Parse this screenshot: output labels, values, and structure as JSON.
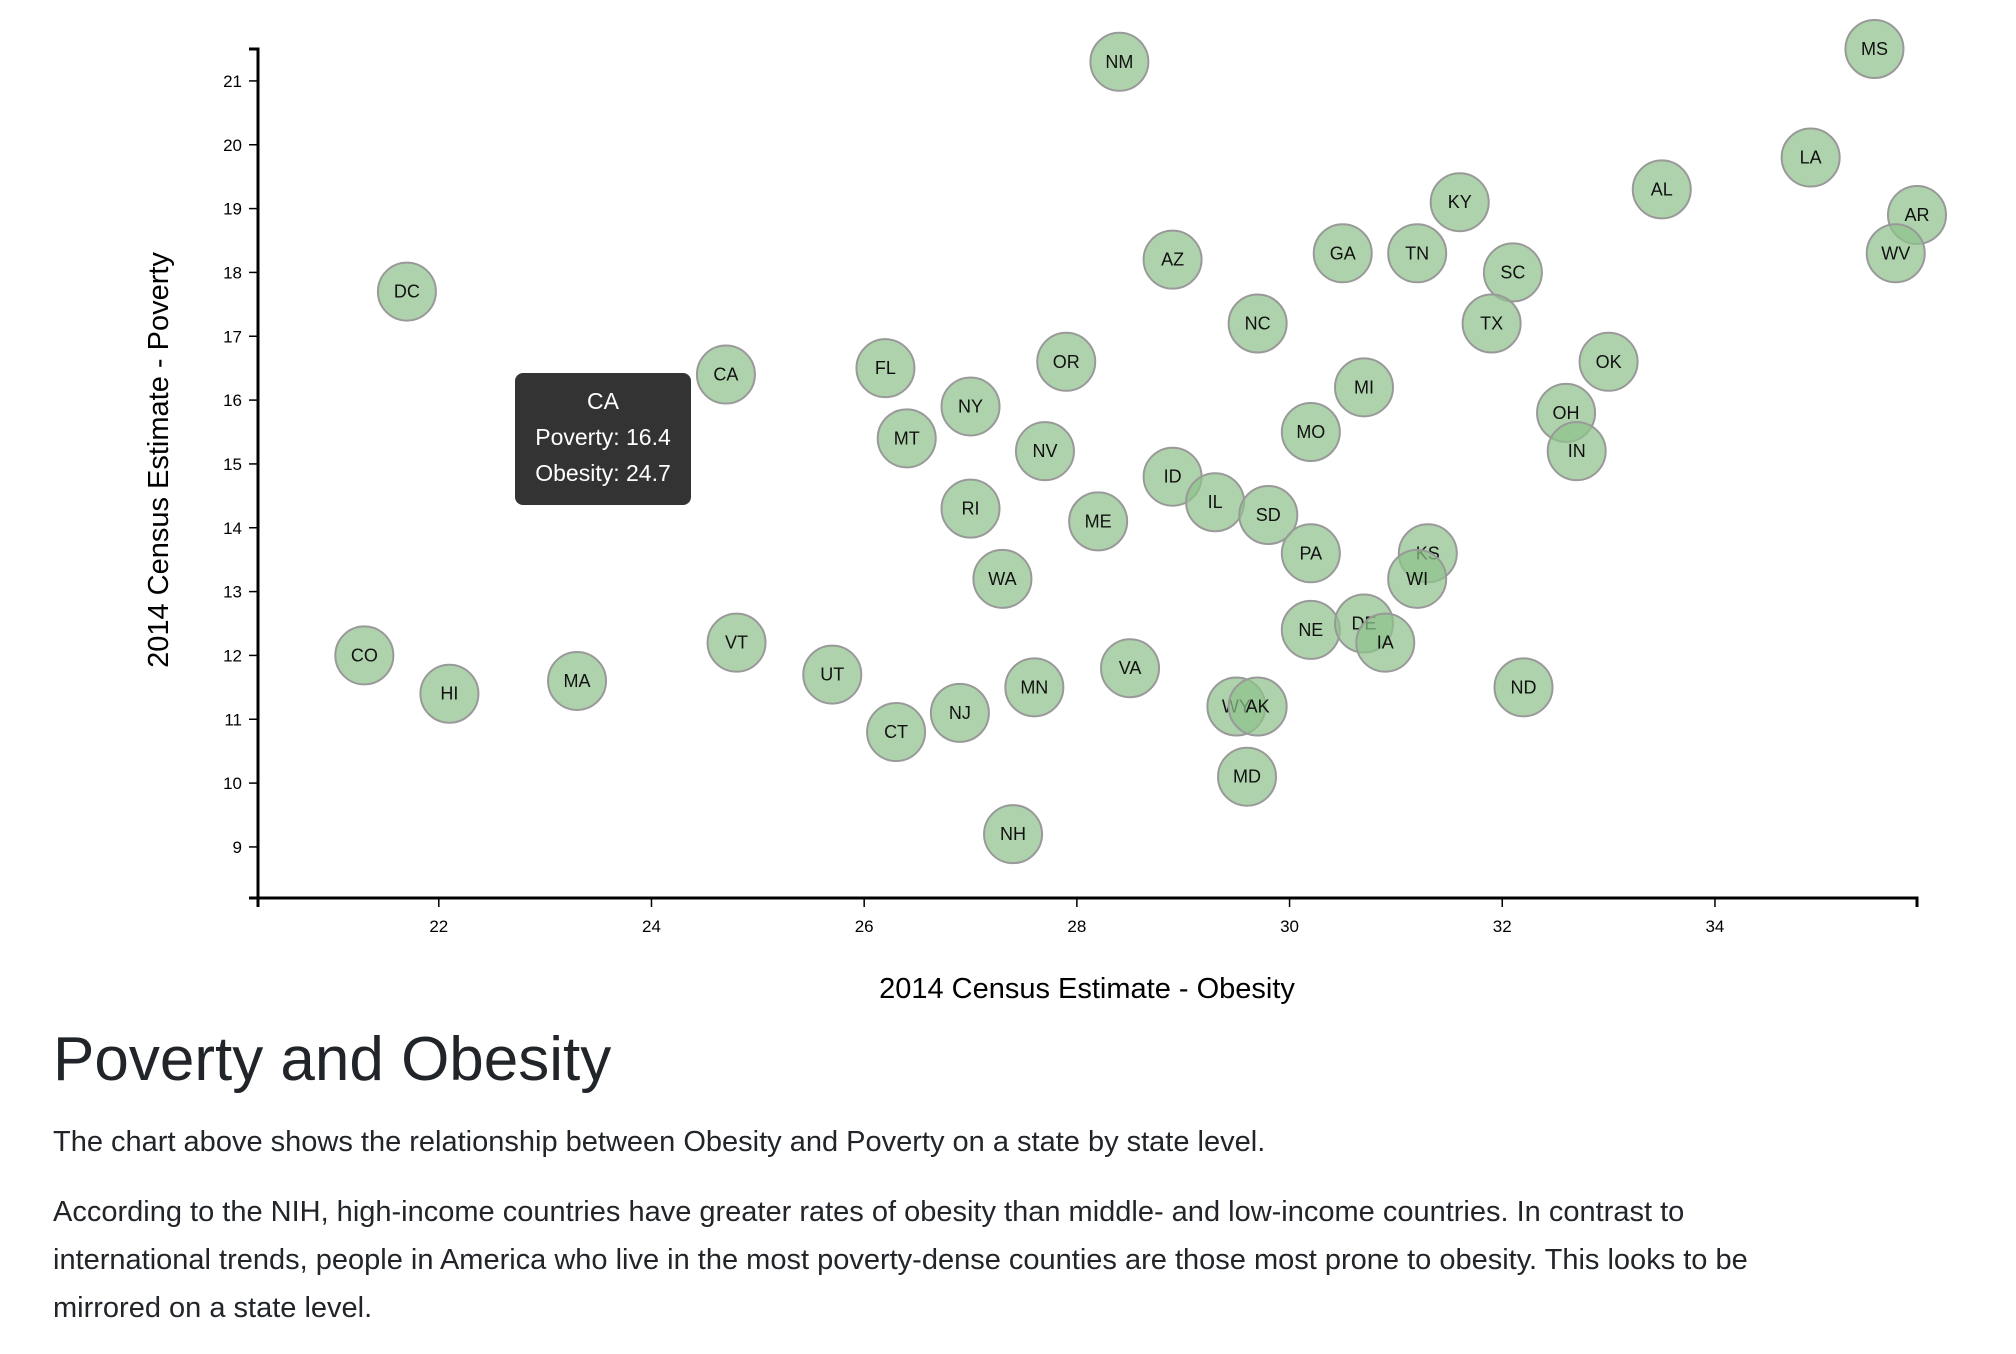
{
  "chart_data": {
    "type": "scatter",
    "xlabel": "2014 Census Estimate - Obesity",
    "ylabel": "2014 Census Estimate - Poverty",
    "xlim": [
      20.3,
      35.9
    ],
    "ylim": [
      8.2,
      21.5
    ],
    "xticks": [
      22,
      24,
      26,
      28,
      30,
      32,
      34
    ],
    "yticks": [
      9,
      10,
      11,
      12,
      13,
      14,
      15,
      16,
      17,
      18,
      19,
      20,
      21
    ],
    "grid": false,
    "marker_color": "#8fc28c",
    "points": [
      {
        "label": "NM",
        "x": 28.4,
        "y": 21.3
      },
      {
        "label": "MS",
        "x": 35.5,
        "y": 21.5
      },
      {
        "label": "LA",
        "x": 34.9,
        "y": 19.8
      },
      {
        "label": "AR",
        "x": 35.9,
        "y": 18.9
      },
      {
        "label": "WV",
        "x": 35.7,
        "y": 18.3
      },
      {
        "label": "AL",
        "x": 33.5,
        "y": 19.3
      },
      {
        "label": "KY",
        "x": 31.6,
        "y": 19.1
      },
      {
        "label": "TN",
        "x": 31.2,
        "y": 18.3
      },
      {
        "label": "GA",
        "x": 30.5,
        "y": 18.3
      },
      {
        "label": "SC",
        "x": 32.1,
        "y": 18.0
      },
      {
        "label": "AZ",
        "x": 28.9,
        "y": 18.2
      },
      {
        "label": "NC",
        "x": 29.7,
        "y": 17.2
      },
      {
        "label": "TX",
        "x": 31.9,
        "y": 17.2
      },
      {
        "label": "OK",
        "x": 33.0,
        "y": 16.6
      },
      {
        "label": "MI",
        "x": 30.7,
        "y": 16.2
      },
      {
        "label": "OH",
        "x": 32.6,
        "y": 15.8
      },
      {
        "label": "IN",
        "x": 32.7,
        "y": 15.2
      },
      {
        "label": "MO",
        "x": 30.2,
        "y": 15.5
      },
      {
        "label": "OR",
        "x": 27.9,
        "y": 16.6
      },
      {
        "label": "FL",
        "x": 26.2,
        "y": 16.5
      },
      {
        "label": "NY",
        "x": 27.0,
        "y": 15.9
      },
      {
        "label": "MT",
        "x": 26.4,
        "y": 15.4
      },
      {
        "label": "NV",
        "x": 27.7,
        "y": 15.2
      },
      {
        "label": "ID",
        "x": 28.9,
        "y": 14.8
      },
      {
        "label": "IL",
        "x": 29.3,
        "y": 14.4
      },
      {
        "label": "SD",
        "x": 29.8,
        "y": 14.2
      },
      {
        "label": "ME",
        "x": 28.2,
        "y": 14.1
      },
      {
        "label": "RI",
        "x": 27.0,
        "y": 14.3
      },
      {
        "label": "WA",
        "x": 27.3,
        "y": 13.2
      },
      {
        "label": "PA",
        "x": 30.2,
        "y": 13.6
      },
      {
        "label": "KS",
        "x": 31.3,
        "y": 13.6
      },
      {
        "label": "WI",
        "x": 31.2,
        "y": 13.2
      },
      {
        "label": "NE",
        "x": 30.2,
        "y": 12.4
      },
      {
        "label": "DE",
        "x": 30.7,
        "y": 12.5
      },
      {
        "label": "IA",
        "x": 30.9,
        "y": 12.2
      },
      {
        "label": "ND",
        "x": 32.2,
        "y": 11.5
      },
      {
        "label": "VA",
        "x": 28.5,
        "y": 11.8
      },
      {
        "label": "WY",
        "x": 29.5,
        "y": 11.2
      },
      {
        "label": "AK",
        "x": 29.7,
        "y": 11.2
      },
      {
        "label": "MD",
        "x": 29.6,
        "y": 10.1
      },
      {
        "label": "NH",
        "x": 27.4,
        "y": 9.2
      },
      {
        "label": "MN",
        "x": 27.6,
        "y": 11.5
      },
      {
        "label": "NJ",
        "x": 26.9,
        "y": 11.1
      },
      {
        "label": "CT",
        "x": 26.3,
        "y": 10.8
      },
      {
        "label": "UT",
        "x": 25.7,
        "y": 11.7
      },
      {
        "label": "VT",
        "x": 24.8,
        "y": 12.2
      },
      {
        "label": "MA",
        "x": 23.3,
        "y": 11.6
      },
      {
        "label": "HI",
        "x": 22.1,
        "y": 11.4
      },
      {
        "label": "CO",
        "x": 21.3,
        "y": 12.0
      },
      {
        "label": "CA",
        "x": 24.7,
        "y": 16.4
      },
      {
        "label": "DC",
        "x": 21.7,
        "y": 17.7
      }
    ]
  },
  "tooltip": {
    "state": "CA",
    "poverty": "Poverty: 16.4",
    "obesity": "Obesity: 24.7"
  },
  "article": {
    "title": "Poverty and Obesity",
    "paragraph1": "The chart above shows the relationship between Obesity and Poverty on a state by state level.",
    "paragraph2": "According to the NIH, high-income countries have greater rates of obesity than middle- and low-income countries. In contrast to international trends, people in America who live in the most poverty-dense counties are those most prone to obesity. This looks to be mirrored on a state level."
  }
}
